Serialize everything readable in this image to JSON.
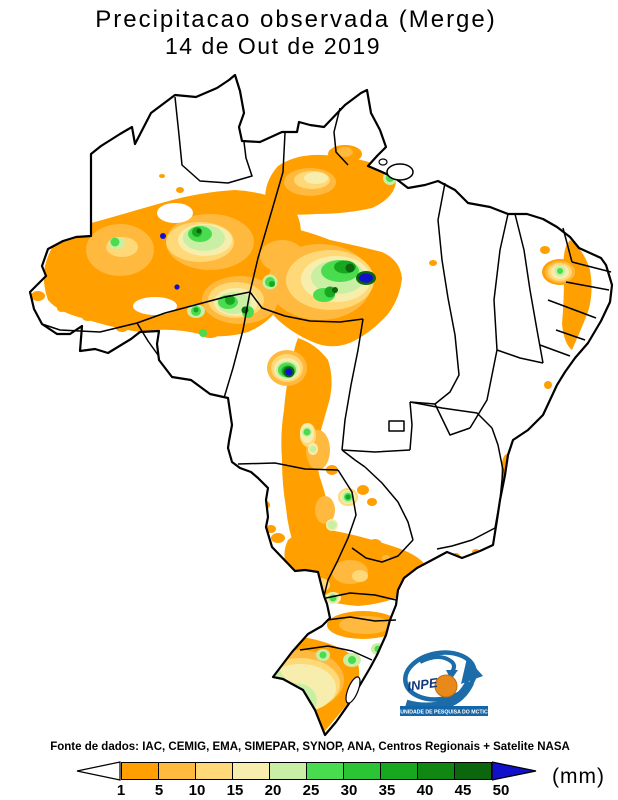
{
  "title": {
    "line1": "Precipitacao observada (Merge)",
    "line2": "14 de Out de 2019"
  },
  "source_line": "Fonte de dados: IAC, CEMIG, EMA, SIMEPAR, SYNOP, ANA, Centros Regionais + Satelite NASA",
  "legend": {
    "unit": "(mm)",
    "ticks": [
      "1",
      "5",
      "10",
      "15",
      "20",
      "25",
      "30",
      "35",
      "40",
      "45",
      "50"
    ],
    "segment_colors": [
      "#FF9F00",
      "#FFB93E",
      "#FFD878",
      "#F7EEAE",
      "#C9EFA5",
      "#4ADC4F",
      "#2BC434",
      "#17A81F",
      "#108712",
      "#0B660D"
    ],
    "below_min_color": "#FFFFFF",
    "above_max_color": "#1111CC",
    "border_color": "#000000"
  },
  "logo": {
    "name": "INPE",
    "banner": "UNIDADE DE PESQUISA DO MCTIC",
    "brand_blue": "#1566A9",
    "globe_orange": "#E8891B"
  },
  "chart_data": {
    "type": "heatmap",
    "title": "Precipitacao observada (Merge)",
    "subtitle": "14 de Out de 2019",
    "unit": "mm",
    "scale_breaks": [
      1,
      5,
      10,
      15,
      20,
      25,
      30,
      35,
      40,
      45,
      50
    ],
    "scale_colors": [
      "#FF9F00",
      "#FFB93E",
      "#FFD878",
      "#F7EEAE",
      "#C9EFA5",
      "#4ADC4F",
      "#2BC434",
      "#17A81F",
      "#108712",
      "#0B660D"
    ],
    "above_max_color": "#1111CC",
    "below_min_color": "#FFFFFF",
    "legend_position": "bottom",
    "region": "Brazil"
  }
}
